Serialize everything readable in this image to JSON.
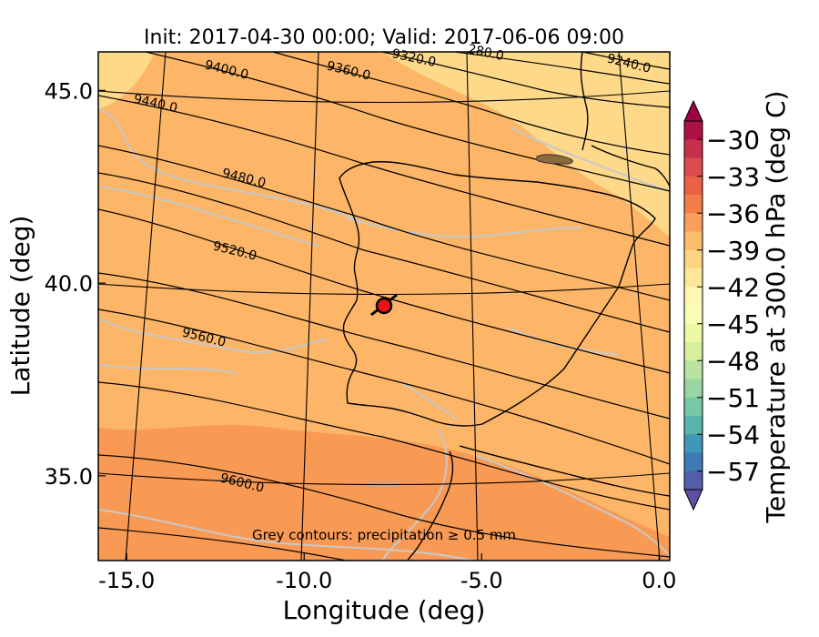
{
  "chart_data": {
    "type": "contour_map",
    "title": "Init: 2017-04-30 00:00; Valid: 2017-06-06 09:00",
    "xlabel": "Longitude (deg)",
    "ylabel": "Latitude (deg)",
    "xticks": [
      "-15.0",
      "-10.0",
      "-5.0",
      "0.0"
    ],
    "yticks": [
      "45.0",
      "40.0",
      "35.0"
    ],
    "x_tick_values": [
      -15.0,
      -10.0,
      -5.0,
      0.0
    ],
    "y_tick_values": [
      45.0,
      40.0,
      35.0
    ],
    "xlim": [
      -15.8,
      0.3
    ],
    "ylim": [
      32.8,
      46.0
    ],
    "grid": true,
    "fill_variable": "Temperature at 300.0 hPa (deg C)",
    "colorbar": {
      "label": "Temperature at 300.0 hPa (deg C)",
      "ticks": [
        "−30",
        "−33",
        "−36",
        "−39",
        "−42",
        "−45",
        "−48",
        "−51",
        "−54",
        "−57"
      ],
      "tick_values": [
        -30,
        -33,
        -36,
        -39,
        -42,
        -45,
        -48,
        -51,
        -54,
        -57
      ],
      "range": [
        -58.5,
        -28.5
      ],
      "extend": "both"
    },
    "height_contours": {
      "labels": [
        "9240.0",
        "9280.0",
        "9320.0",
        "9360.0",
        "9400.0",
        "9440.0",
        "9480.0",
        "9520.0",
        "9560.0",
        "9600.0"
      ],
      "label_text": [
        "9240.0",
        "280.0",
        "9320.0",
        "9360.0",
        "9400.0",
        "9440.0",
        "9480.0",
        "9520.0",
        "9560.0",
        "9600.0"
      ]
    },
    "annotation": "Grey contours: precipitation ≥ 0.5 mm",
    "marker": {
      "lon": -7.6,
      "lat": 39.4,
      "color": "#ee1111"
    }
  },
  "colors": {
    "fill_warm": "#f99a54",
    "fill_mid": "#fdb567",
    "fill_cool": "#fed98a",
    "precip_contour": "#c8c8c8",
    "coast": "#000000"
  }
}
